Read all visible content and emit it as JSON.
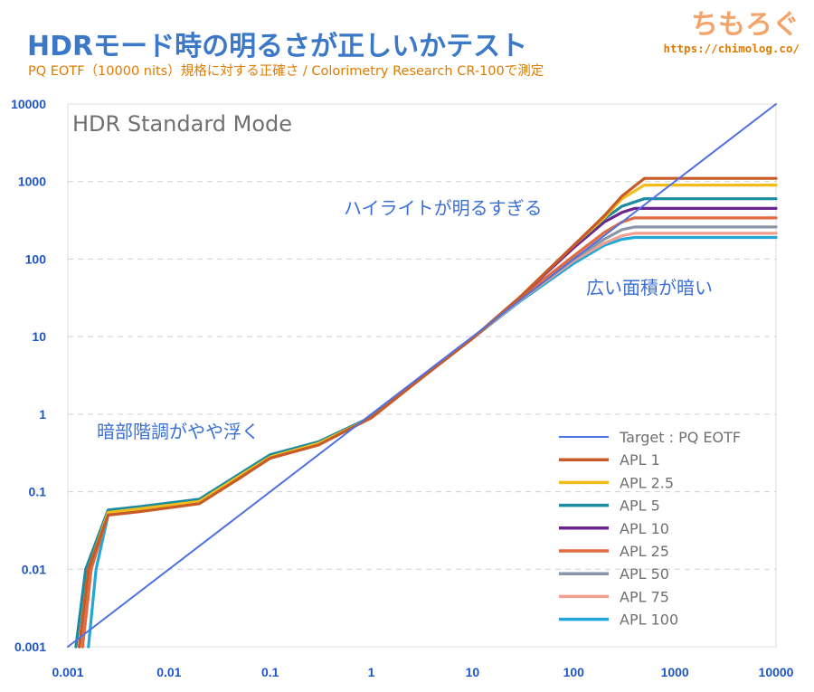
{
  "header": {
    "title": "HDRモード時の明るさが正しいかテスト",
    "subtitle": "PQ EOTF（10000 nits）規格に対する正確さ / Colorimetry Research CR-100で測定",
    "brand_name": "ちもろぐ",
    "brand_url": "https://chimolog.co/"
  },
  "chart_data": {
    "type": "line",
    "x_scale": "log",
    "y_scale": "log",
    "xlim": [
      0.001,
      10000
    ],
    "ylim": [
      0.001,
      10000
    ],
    "x_ticks": [
      "0.001",
      "0.01",
      "0.1",
      "1",
      "10",
      "100",
      "1000",
      "10000"
    ],
    "y_ticks": [
      "0.001",
      "0.01",
      "0.1",
      "1",
      "10",
      "100",
      "1000",
      "10000"
    ],
    "panel_label": "HDR Standard Mode",
    "grid": "horizontal dashed",
    "legend_position": "bottom-right",
    "annotations": [
      {
        "text": "ハイライトが明るすぎる",
        "color": "#3b6fd6"
      },
      {
        "text": "広い面積が暗い",
        "color": "#3b6fd6"
      },
      {
        "text": "暗部階調がやや浮く",
        "color": "#3b6fd6"
      }
    ],
    "series": [
      {
        "name": "Target : PQ EOTF",
        "color": "#4f72e3",
        "x": [
          0.001,
          10000
        ],
        "y": [
          0.001,
          10000
        ]
      },
      {
        "name": "APL 1",
        "color": "#c85a28",
        "x": [
          0.0013,
          0.0016,
          0.0025,
          0.005,
          0.02,
          0.05,
          0.1,
          0.3,
          1,
          3,
          10,
          30,
          100,
          200,
          300,
          500,
          10000
        ],
        "y": [
          0.001,
          0.01,
          0.05,
          0.055,
          0.07,
          0.15,
          0.27,
          0.4,
          0.9,
          2.8,
          9.5,
          33,
          150,
          360,
          650,
          1100,
          1100
        ]
      },
      {
        "name": "APL 2.5",
        "color": "#f0bd1c",
        "x": [
          0.0013,
          0.0016,
          0.0025,
          0.005,
          0.02,
          0.05,
          0.1,
          0.3,
          1,
          3,
          10,
          30,
          100,
          200,
          300,
          500,
          10000
        ],
        "y": [
          0.001,
          0.01,
          0.054,
          0.06,
          0.075,
          0.16,
          0.28,
          0.42,
          0.9,
          2.8,
          9.5,
          33,
          150,
          340,
          600,
          900,
          900
        ]
      },
      {
        "name": "APL 5",
        "color": "#1b8ba0",
        "x": [
          0.0012,
          0.0015,
          0.0025,
          0.005,
          0.02,
          0.05,
          0.1,
          0.3,
          1,
          3,
          10,
          30,
          100,
          200,
          300,
          500,
          10000
        ],
        "y": [
          0.001,
          0.01,
          0.058,
          0.064,
          0.08,
          0.17,
          0.3,
          0.44,
          0.92,
          2.9,
          9.5,
          33,
          150,
          330,
          480,
          600,
          600
        ]
      },
      {
        "name": "APL 10",
        "color": "#6b2490",
        "x": [
          0.0013,
          0.0016,
          0.0025,
          0.005,
          0.02,
          0.05,
          0.1,
          0.3,
          1,
          3,
          10,
          30,
          100,
          200,
          300,
          400,
          10000
        ],
        "y": [
          0.001,
          0.01,
          0.055,
          0.06,
          0.077,
          0.16,
          0.29,
          0.43,
          0.9,
          2.8,
          9.5,
          33,
          140,
          300,
          400,
          450,
          450
        ]
      },
      {
        "name": "APL 25",
        "color": "#e26a40",
        "x": [
          0.0014,
          0.0017,
          0.0025,
          0.005,
          0.02,
          0.05,
          0.1,
          0.3,
          1,
          3,
          10,
          30,
          100,
          200,
          300,
          400,
          10000
        ],
        "y": [
          0.001,
          0.01,
          0.052,
          0.057,
          0.073,
          0.15,
          0.28,
          0.42,
          0.9,
          2.8,
          9.5,
          32,
          110,
          220,
          300,
          340,
          340
        ]
      },
      {
        "name": "APL 50",
        "color": "#8a96a8",
        "x": [
          0.0013,
          0.0016,
          0.0025,
          0.005,
          0.02,
          0.05,
          0.1,
          0.3,
          1,
          3,
          10,
          30,
          100,
          200,
          300,
          400,
          10000
        ],
        "y": [
          0.001,
          0.01,
          0.056,
          0.062,
          0.078,
          0.16,
          0.29,
          0.43,
          0.9,
          2.8,
          9.5,
          31,
          100,
          180,
          240,
          260,
          260
        ]
      },
      {
        "name": "APL 75",
        "color": "#f0a090",
        "x": [
          0.0014,
          0.0017,
          0.0025,
          0.005,
          0.02,
          0.05,
          0.1,
          0.3,
          1,
          3,
          10,
          30,
          100,
          200,
          300,
          400,
          10000
        ],
        "y": [
          0.001,
          0.01,
          0.053,
          0.058,
          0.074,
          0.15,
          0.28,
          0.42,
          0.9,
          2.8,
          9.5,
          30,
          95,
          160,
          200,
          215,
          215
        ]
      },
      {
        "name": "APL 100",
        "color": "#22a8d8",
        "x": [
          0.0016,
          0.0019,
          0.0025,
          0.005,
          0.02,
          0.05,
          0.1,
          0.3,
          1,
          3,
          10,
          30,
          100,
          200,
          300,
          400,
          10000
        ],
        "y": [
          0.001,
          0.01,
          0.05,
          0.058,
          0.074,
          0.15,
          0.28,
          0.42,
          0.9,
          2.8,
          9.5,
          29,
          88,
          150,
          180,
          190,
          190
        ]
      }
    ]
  }
}
